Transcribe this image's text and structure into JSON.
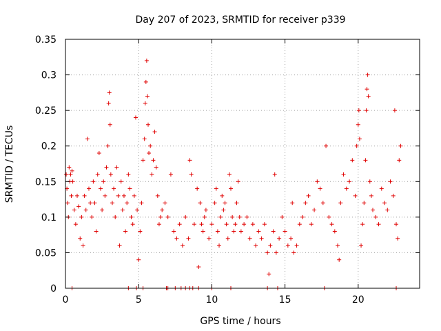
{
  "chart_data": {
    "type": "scatter",
    "title": "Day 207 of 2023, SRMTID for receiver p339",
    "xlabel": "GPS time / hours",
    "ylabel": "SRMTID / TECUs",
    "xlim": [
      0,
      24.2
    ],
    "ylim": [
      0,
      0.35
    ],
    "x_ticks": [
      0,
      5,
      10,
      15,
      20
    ],
    "x_tick_labels": [
      "0",
      "5",
      "10",
      "15",
      "20"
    ],
    "y_ticks": [
      0,
      0.05,
      0.1,
      0.15,
      0.2,
      0.25,
      0.3,
      0.35
    ],
    "y_tick_labels": [
      "0",
      "0.05",
      "0.1",
      "0.15",
      "0.2",
      "0.25",
      "0.3",
      "0.35"
    ],
    "grid": true,
    "marker": "+",
    "color": "#e00000",
    "series": [
      {
        "name": "SRMTID",
        "points": [
          [
            0.05,
            0.16
          ],
          [
            0.1,
            0.14
          ],
          [
            0.15,
            0.12
          ],
          [
            0.2,
            0.1
          ],
          [
            0.25,
            0.17
          ],
          [
            0.3,
            0.15
          ],
          [
            0.35,
            0.16
          ],
          [
            0.4,
            0.13
          ],
          [
            0.45,
            0.165
          ],
          [
            0.5,
            0.15
          ],
          [
            0.6,
            0.11
          ],
          [
            0.7,
            0.09
          ],
          [
            0.8,
            0.13
          ],
          [
            0.9,
            0.115
          ],
          [
            1.0,
            0.07
          ],
          [
            1.1,
            0.1
          ],
          [
            1.2,
            0.06
          ],
          [
            1.3,
            0.13
          ],
          [
            1.4,
            0.11
          ],
          [
            1.5,
            0.21
          ],
          [
            1.6,
            0.14
          ],
          [
            1.7,
            0.12
          ],
          [
            1.8,
            0.1
          ],
          [
            1.9,
            0.15
          ],
          [
            2.0,
            0.12
          ],
          [
            2.1,
            0.08
          ],
          [
            2.2,
            0.16
          ],
          [
            2.3,
            0.19
          ],
          [
            2.4,
            0.14
          ],
          [
            2.5,
            0.11
          ],
          [
            2.6,
            0.15
          ],
          [
            2.7,
            0.13
          ],
          [
            2.8,
            0.17
          ],
          [
            2.9,
            0.2
          ],
          [
            2.95,
            0.26
          ],
          [
            3.0,
            0.275
          ],
          [
            3.05,
            0.23
          ],
          [
            3.1,
            0.16
          ],
          [
            3.2,
            0.12
          ],
          [
            3.3,
            0.14
          ],
          [
            3.4,
            0.1
          ],
          [
            3.5,
            0.17
          ],
          [
            3.6,
            0.13
          ],
          [
            3.7,
            0.06
          ],
          [
            3.8,
            0.15
          ],
          [
            3.9,
            0.11
          ],
          [
            4.0,
            0.13
          ],
          [
            4.1,
            0.08
          ],
          [
            4.2,
            0.12
          ],
          [
            4.3,
            0.16
          ],
          [
            4.4,
            0.14
          ],
          [
            4.5,
            0.1
          ],
          [
            4.6,
            0.09
          ],
          [
            4.7,
            0.13
          ],
          [
            4.8,
            0.24
          ],
          [
            4.9,
            0.11
          ],
          [
            5.0,
            0.04
          ],
          [
            5.1,
            0.08
          ],
          [
            5.2,
            0.12
          ],
          [
            5.3,
            0.18
          ],
          [
            5.4,
            0.21
          ],
          [
            5.45,
            0.26
          ],
          [
            5.5,
            0.29
          ],
          [
            5.55,
            0.32
          ],
          [
            5.6,
            0.27
          ],
          [
            5.65,
            0.23
          ],
          [
            5.7,
            0.19
          ],
          [
            5.8,
            0.2
          ],
          [
            5.9,
            0.16
          ],
          [
            6.0,
            0.18
          ],
          [
            6.1,
            0.22
          ],
          [
            6.2,
            0.17
          ],
          [
            6.3,
            0.13
          ],
          [
            6.4,
            0.09
          ],
          [
            6.5,
            0.1
          ],
          [
            6.6,
            0.11
          ],
          [
            6.8,
            0.12
          ],
          [
            7.0,
            0.1
          ],
          [
            7.2,
            0.16
          ],
          [
            7.4,
            0.08
          ],
          [
            7.6,
            0.07
          ],
          [
            7.8,
            0.09
          ],
          [
            8.0,
            0.06
          ],
          [
            8.2,
            0.1
          ],
          [
            8.4,
            0.07
          ],
          [
            8.5,
            0.18
          ],
          [
            8.6,
            0.16
          ],
          [
            8.8,
            0.09
          ],
          [
            9.0,
            0.14
          ],
          [
            9.1,
            0.03
          ],
          [
            9.2,
            0.12
          ],
          [
            9.3,
            0.09
          ],
          [
            9.4,
            0.08
          ],
          [
            9.5,
            0.1
          ],
          [
            9.6,
            0.11
          ],
          [
            9.8,
            0.07
          ],
          [
            10.0,
            0.09
          ],
          [
            10.2,
            0.12
          ],
          [
            10.3,
            0.14
          ],
          [
            10.4,
            0.08
          ],
          [
            10.5,
            0.06
          ],
          [
            10.6,
            0.1
          ],
          [
            10.7,
            0.13
          ],
          [
            10.8,
            0.11
          ],
          [
            10.9,
            0.12
          ],
          [
            11.0,
            0.09
          ],
          [
            11.1,
            0.07
          ],
          [
            11.2,
            0.16
          ],
          [
            11.3,
            0.14
          ],
          [
            11.4,
            0.1
          ],
          [
            11.5,
            0.08
          ],
          [
            11.6,
            0.09
          ],
          [
            11.7,
            0.12
          ],
          [
            11.8,
            0.15
          ],
          [
            11.9,
            0.1
          ],
          [
            12.0,
            0.08
          ],
          [
            12.2,
            0.09
          ],
          [
            12.4,
            0.1
          ],
          [
            12.6,
            0.07
          ],
          [
            12.8,
            0.09
          ],
          [
            13.0,
            0.06
          ],
          [
            13.2,
            0.08
          ],
          [
            13.4,
            0.07
          ],
          [
            13.6,
            0.09
          ],
          [
            13.8,
            0.05
          ],
          [
            13.9,
            0.02
          ],
          [
            14.0,
            0.06
          ],
          [
            14.2,
            0.08
          ],
          [
            14.3,
            0.16
          ],
          [
            14.4,
            0.05
          ],
          [
            14.6,
            0.07
          ],
          [
            14.8,
            0.1
          ],
          [
            15.0,
            0.08
          ],
          [
            15.2,
            0.06
          ],
          [
            15.4,
            0.07
          ],
          [
            15.5,
            0.12
          ],
          [
            15.6,
            0.05
          ],
          [
            15.8,
            0.06
          ],
          [
            16.0,
            0.09
          ],
          [
            16.2,
            0.1
          ],
          [
            16.4,
            0.12
          ],
          [
            16.6,
            0.13
          ],
          [
            16.8,
            0.09
          ],
          [
            17.0,
            0.11
          ],
          [
            17.2,
            0.15
          ],
          [
            17.4,
            0.14
          ],
          [
            17.6,
            0.12
          ],
          [
            17.8,
            0.2
          ],
          [
            18.0,
            0.1
          ],
          [
            18.2,
            0.09
          ],
          [
            18.4,
            0.08
          ],
          [
            18.6,
            0.06
          ],
          [
            18.7,
            0.04
          ],
          [
            18.8,
            0.12
          ],
          [
            19.0,
            0.16
          ],
          [
            19.2,
            0.14
          ],
          [
            19.4,
            0.15
          ],
          [
            19.6,
            0.18
          ],
          [
            19.8,
            0.13
          ],
          [
            19.9,
            0.2
          ],
          [
            20.0,
            0.23
          ],
          [
            20.05,
            0.25
          ],
          [
            20.1,
            0.21
          ],
          [
            20.2,
            0.06
          ],
          [
            20.3,
            0.09
          ],
          [
            20.4,
            0.12
          ],
          [
            20.5,
            0.18
          ],
          [
            20.55,
            0.25
          ],
          [
            20.6,
            0.28
          ],
          [
            20.65,
            0.3
          ],
          [
            20.7,
            0.27
          ],
          [
            20.8,
            0.15
          ],
          [
            20.9,
            0.13
          ],
          [
            21.0,
            0.11
          ],
          [
            21.2,
            0.1
          ],
          [
            21.4,
            0.09
          ],
          [
            21.6,
            0.14
          ],
          [
            21.8,
            0.12
          ],
          [
            22.0,
            0.11
          ],
          [
            22.2,
            0.15
          ],
          [
            22.4,
            0.13
          ],
          [
            22.5,
            0.25
          ],
          [
            22.6,
            0.09
          ],
          [
            22.7,
            0.07
          ],
          [
            22.8,
            0.18
          ],
          [
            22.9,
            0.2
          ]
        ],
        "zero_hours": [
          0.45,
          4.3,
          4.85,
          5.3,
          6.9,
          7.0,
          7.5,
          7.9,
          8.2,
          8.5,
          8.7,
          9.1,
          10.0,
          11.3,
          13.8,
          14.5,
          17.7,
          22.6
        ]
      }
    ]
  }
}
